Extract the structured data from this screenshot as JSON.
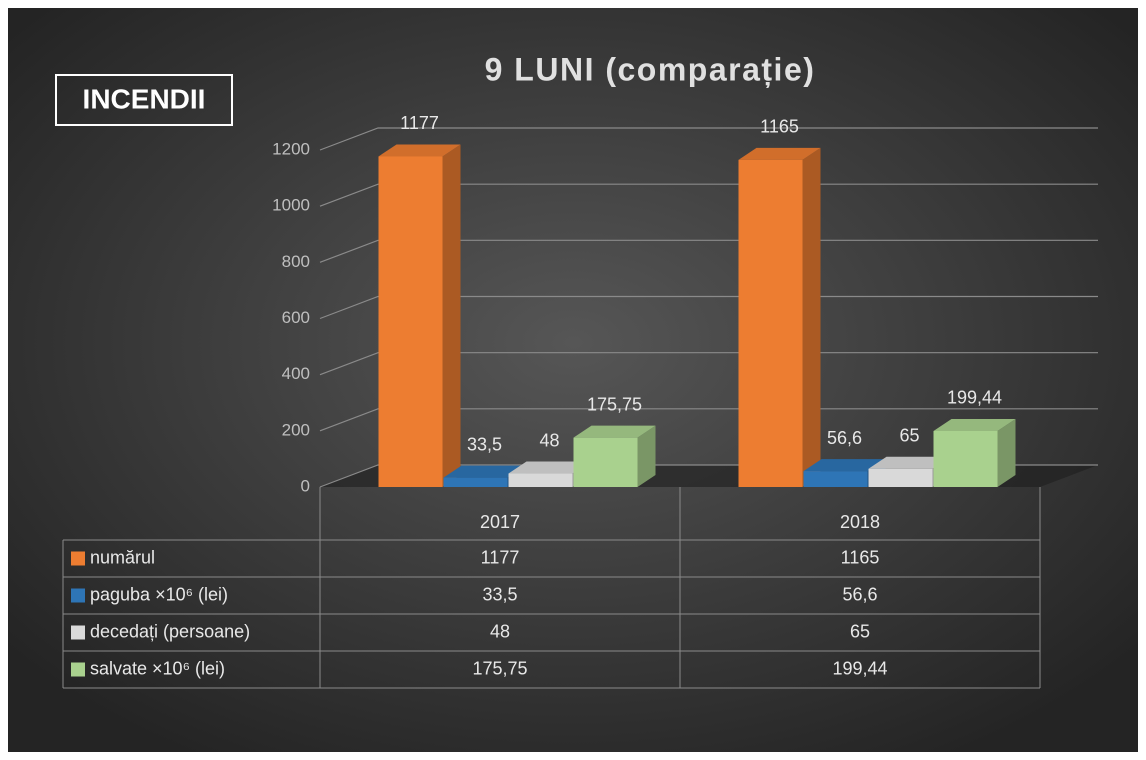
{
  "chart_data": {
    "type": "bar3d",
    "title": "9 LUNI (comparație)",
    "badge": "INCENDII",
    "categories": [
      "2017",
      "2018"
    ],
    "series": [
      {
        "name": "numărul",
        "color": "#ED7D31",
        "values": [
          1177,
          1165
        ]
      },
      {
        "name": "paguba ×10⁶ (lei)",
        "color": "#2E75B6",
        "values": [
          33.5,
          56.6
        ],
        "value_labels": [
          "33,5",
          "56,6"
        ]
      },
      {
        "name": "decedați (persoane)",
        "color": "#D9D9D9",
        "values": [
          48,
          65
        ]
      },
      {
        "name": "salvate ×10⁶ (lei)",
        "color": "#A9D18E",
        "values": [
          175.75,
          199.44
        ],
        "value_labels": [
          "175,75",
          "199,44"
        ]
      }
    ],
    "ylim": [
      0,
      1200
    ],
    "yticks": [
      0,
      200,
      400,
      600,
      800,
      1000,
      1200
    ],
    "grid": true
  }
}
